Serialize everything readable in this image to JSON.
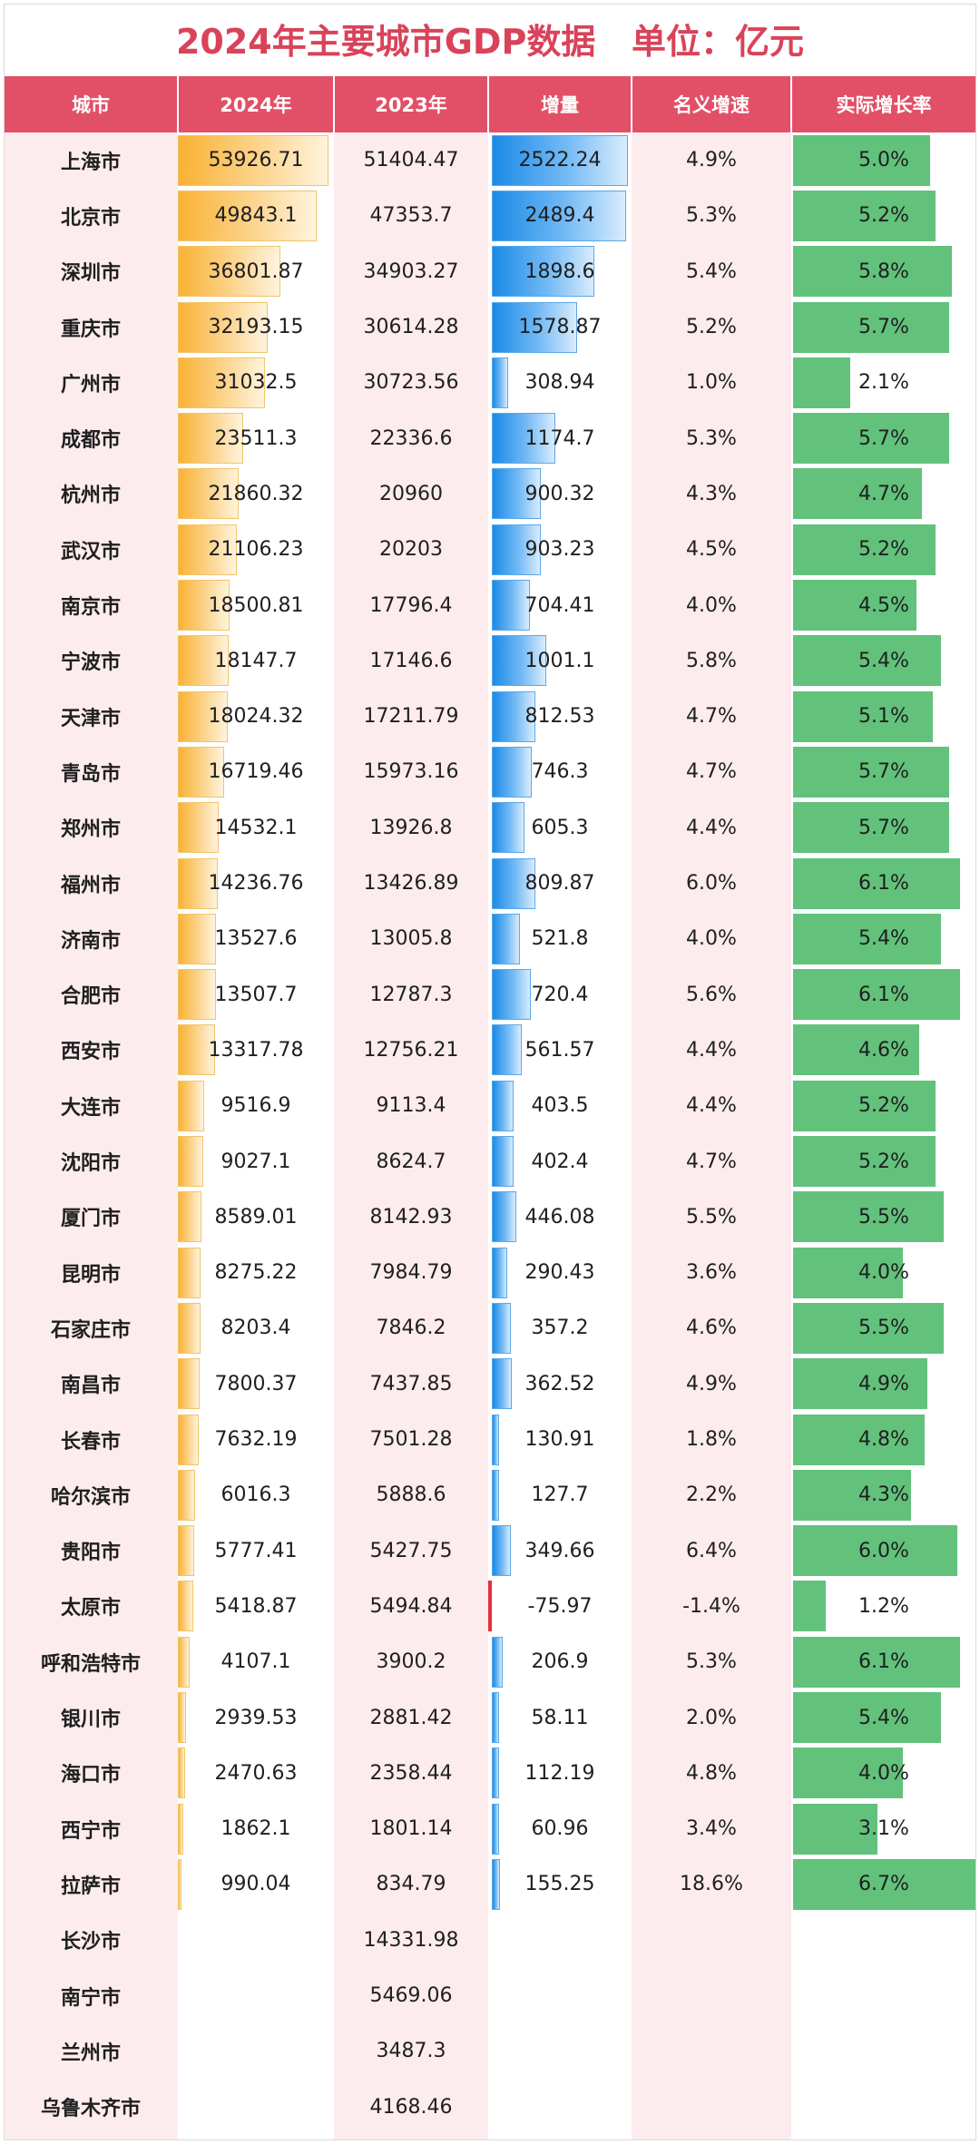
{
  "title": "2024年主要城市GDP数据   单位：亿元",
  "headers": {
    "city": "城市",
    "gdp2024": "2024年",
    "gdp2023": "2023年",
    "increase": "增量",
    "nominal": "名义增速",
    "real": "实际增长率"
  },
  "colors": {
    "title": "#d9435a",
    "header_bg": "#e25067",
    "pink_bg": "#fdeced",
    "gdp_bar": "#f9b233",
    "increase_bar": "#1a8ae6",
    "negative_bar": "#e0323d",
    "real_bar": "#62c27c"
  },
  "chart_data": {
    "type": "table",
    "columns": [
      "城市",
      "2024年",
      "2023年",
      "增量",
      "名义增速",
      "实际增长率"
    ],
    "rows": [
      {
        "city": "上海市",
        "gdp2024": "53926.71",
        "gdp2023": "51404.47",
        "increase": "2522.24",
        "nominal": "4.9%",
        "real": "5.0%"
      },
      {
        "city": "北京市",
        "gdp2024": "49843.1",
        "gdp2023": "47353.7",
        "increase": "2489.4",
        "nominal": "5.3%",
        "real": "5.2%"
      },
      {
        "city": "深圳市",
        "gdp2024": "36801.87",
        "gdp2023": "34903.27",
        "increase": "1898.6",
        "nominal": "5.4%",
        "real": "5.8%"
      },
      {
        "city": "重庆市",
        "gdp2024": "32193.15",
        "gdp2023": "30614.28",
        "increase": "1578.87",
        "nominal": "5.2%",
        "real": "5.7%"
      },
      {
        "city": "广州市",
        "gdp2024": "31032.5",
        "gdp2023": "30723.56",
        "increase": "308.94",
        "nominal": "1.0%",
        "real": "2.1%"
      },
      {
        "city": "成都市",
        "gdp2024": "23511.3",
        "gdp2023": "22336.6",
        "increase": "1174.7",
        "nominal": "5.3%",
        "real": "5.7%"
      },
      {
        "city": "杭州市",
        "gdp2024": "21860.32",
        "gdp2023": "20960",
        "increase": "900.32",
        "nominal": "4.3%",
        "real": "4.7%"
      },
      {
        "city": "武汉市",
        "gdp2024": "21106.23",
        "gdp2023": "20203",
        "increase": "903.23",
        "nominal": "4.5%",
        "real": "5.2%"
      },
      {
        "city": "南京市",
        "gdp2024": "18500.81",
        "gdp2023": "17796.4",
        "increase": "704.41",
        "nominal": "4.0%",
        "real": "4.5%"
      },
      {
        "city": "宁波市",
        "gdp2024": "18147.7",
        "gdp2023": "17146.6",
        "increase": "1001.1",
        "nominal": "5.8%",
        "real": "5.4%"
      },
      {
        "city": "天津市",
        "gdp2024": "18024.32",
        "gdp2023": "17211.79",
        "increase": "812.53",
        "nominal": "4.7%",
        "real": "5.1%"
      },
      {
        "city": "青岛市",
        "gdp2024": "16719.46",
        "gdp2023": "15973.16",
        "increase": "746.3",
        "nominal": "4.7%",
        "real": "5.7%"
      },
      {
        "city": "郑州市",
        "gdp2024": "14532.1",
        "gdp2023": "13926.8",
        "increase": "605.3",
        "nominal": "4.4%",
        "real": "5.7%"
      },
      {
        "city": "福州市",
        "gdp2024": "14236.76",
        "gdp2023": "13426.89",
        "increase": "809.87",
        "nominal": "6.0%",
        "real": "6.1%"
      },
      {
        "city": "济南市",
        "gdp2024": "13527.6",
        "gdp2023": "13005.8",
        "increase": "521.8",
        "nominal": "4.0%",
        "real": "5.4%"
      },
      {
        "city": "合肥市",
        "gdp2024": "13507.7",
        "gdp2023": "12787.3",
        "increase": "720.4",
        "nominal": "5.6%",
        "real": "6.1%"
      },
      {
        "city": "西安市",
        "gdp2024": "13317.78",
        "gdp2023": "12756.21",
        "increase": "561.57",
        "nominal": "4.4%",
        "real": "4.6%"
      },
      {
        "city": "大连市",
        "gdp2024": "9516.9",
        "gdp2023": "9113.4",
        "increase": "403.5",
        "nominal": "4.4%",
        "real": "5.2%"
      },
      {
        "city": "沈阳市",
        "gdp2024": "9027.1",
        "gdp2023": "8624.7",
        "increase": "402.4",
        "nominal": "4.7%",
        "real": "5.2%"
      },
      {
        "city": "厦门市",
        "gdp2024": "8589.01",
        "gdp2023": "8142.93",
        "increase": "446.08",
        "nominal": "5.5%",
        "real": "5.5%"
      },
      {
        "city": "昆明市",
        "gdp2024": "8275.22",
        "gdp2023": "7984.79",
        "increase": "290.43",
        "nominal": "3.6%",
        "real": "4.0%"
      },
      {
        "city": "石家庄市",
        "gdp2024": "8203.4",
        "gdp2023": "7846.2",
        "increase": "357.2",
        "nominal": "4.6%",
        "real": "5.5%"
      },
      {
        "city": "南昌市",
        "gdp2024": "7800.37",
        "gdp2023": "7437.85",
        "increase": "362.52",
        "nominal": "4.9%",
        "real": "4.9%"
      },
      {
        "city": "长春市",
        "gdp2024": "7632.19",
        "gdp2023": "7501.28",
        "increase": "130.91",
        "nominal": "1.8%",
        "real": "4.8%"
      },
      {
        "city": "哈尔滨市",
        "gdp2024": "6016.3",
        "gdp2023": "5888.6",
        "increase": "127.7",
        "nominal": "2.2%",
        "real": "4.3%"
      },
      {
        "city": "贵阳市",
        "gdp2024": "5777.41",
        "gdp2023": "5427.75",
        "increase": "349.66",
        "nominal": "6.4%",
        "real": "6.0%"
      },
      {
        "city": "太原市",
        "gdp2024": "5418.87",
        "gdp2023": "5494.84",
        "increase": "-75.97",
        "nominal": "-1.4%",
        "real": "1.2%"
      },
      {
        "city": "呼和浩特市",
        "gdp2024": "4107.1",
        "gdp2023": "3900.2",
        "increase": "206.9",
        "nominal": "5.3%",
        "real": "6.1%"
      },
      {
        "city": "银川市",
        "gdp2024": "2939.53",
        "gdp2023": "2881.42",
        "increase": "58.11",
        "nominal": "2.0%",
        "real": "5.4%"
      },
      {
        "city": "海口市",
        "gdp2024": "2470.63",
        "gdp2023": "2358.44",
        "increase": "112.19",
        "nominal": "4.8%",
        "real": "4.0%"
      },
      {
        "city": "西宁市",
        "gdp2024": "1862.1",
        "gdp2023": "1801.14",
        "increase": "60.96",
        "nominal": "3.4%",
        "real": "3.1%"
      },
      {
        "city": "拉萨市",
        "gdp2024": "990.04",
        "gdp2023": "834.79",
        "increase": "155.25",
        "nominal": "18.6%",
        "real": "6.7%"
      },
      {
        "city": "长沙市",
        "gdp2024": "",
        "gdp2023": "14331.98",
        "increase": "",
        "nominal": "",
        "real": ""
      },
      {
        "city": "南宁市",
        "gdp2024": "",
        "gdp2023": "5469.06",
        "increase": "",
        "nominal": "",
        "real": ""
      },
      {
        "city": "兰州市",
        "gdp2024": "",
        "gdp2023": "3487.3",
        "increase": "",
        "nominal": "",
        "real": ""
      },
      {
        "city": "乌鲁木齐市",
        "gdp2024": "",
        "gdp2023": "4168.46",
        "increase": "",
        "nominal": "",
        "real": ""
      }
    ]
  }
}
